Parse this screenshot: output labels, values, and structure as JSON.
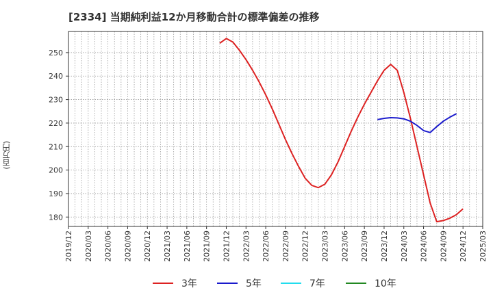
{
  "chart_data": {
    "type": "line",
    "title": "[2334]  当期純利益12か月移動合計の標準偏差の推移",
    "y_unit_label": "(百万円)",
    "xlabel": "",
    "ylabel": "(百万円)",
    "ylim": [
      176,
      259
    ],
    "yticks": [
      180,
      190,
      200,
      210,
      220,
      230,
      240,
      250
    ],
    "xlim": [
      "2019/12",
      "2025/03"
    ],
    "xticks": [
      "2019/12",
      "2020/03",
      "2020/06",
      "2020/09",
      "2020/12",
      "2021/03",
      "2021/06",
      "2021/09",
      "2021/12",
      "2022/03",
      "2022/06",
      "2022/09",
      "2022/12",
      "2023/03",
      "2023/06",
      "2023/09",
      "2023/12",
      "2024/03",
      "2024/06",
      "2024/09",
      "2024/12",
      "2025/03"
    ],
    "grid": true,
    "legend_position": "bottom",
    "series": [
      {
        "name": "3年",
        "color": "#dd2222",
        "points": [
          [
            "2021/11",
            254.0
          ],
          [
            "2021/12",
            256.0
          ],
          [
            "2022/01",
            254.5
          ],
          [
            "2022/02",
            251.0
          ],
          [
            "2022/03",
            247.0
          ],
          [
            "2022/04",
            242.5
          ],
          [
            "2022/05",
            237.5
          ],
          [
            "2022/06",
            232.0
          ],
          [
            "2022/07",
            226.0
          ],
          [
            "2022/08",
            219.5
          ],
          [
            "2022/09",
            213.0
          ],
          [
            "2022/10",
            207.0
          ],
          [
            "2022/11",
            201.5
          ],
          [
            "2022/12",
            196.5
          ],
          [
            "2023/01",
            193.5
          ],
          [
            "2023/02",
            192.5
          ],
          [
            "2023/03",
            194.0
          ],
          [
            "2023/04",
            198.0
          ],
          [
            "2023/05",
            203.5
          ],
          [
            "2023/06",
            210.0
          ],
          [
            "2023/07",
            216.5
          ],
          [
            "2023/08",
            222.5
          ],
          [
            "2023/09",
            228.0
          ],
          [
            "2023/10",
            233.0
          ],
          [
            "2023/11",
            238.0
          ],
          [
            "2023/12",
            242.5
          ],
          [
            "2024/01",
            245.0
          ],
          [
            "2024/02",
            242.5
          ],
          [
            "2024/03",
            233.0
          ],
          [
            "2024/04",
            222.0
          ],
          [
            "2024/05",
            210.0
          ],
          [
            "2024/06",
            198.0
          ],
          [
            "2024/07",
            186.0
          ],
          [
            "2024/08",
            178.0
          ],
          [
            "2024/09",
            178.5
          ],
          [
            "2024/10",
            179.5
          ],
          [
            "2024/11",
            181.0
          ],
          [
            "2024/12",
            183.5
          ]
        ]
      },
      {
        "name": "5年",
        "color": "#1a1acc",
        "points": [
          [
            "2023/11",
            221.5
          ],
          [
            "2023/12",
            222.0
          ],
          [
            "2024/01",
            222.3
          ],
          [
            "2024/02",
            222.2
          ],
          [
            "2024/03",
            221.8
          ],
          [
            "2024/04",
            220.8
          ],
          [
            "2024/05",
            219.0
          ],
          [
            "2024/06",
            216.8
          ],
          [
            "2024/07",
            216.0
          ],
          [
            "2024/08",
            218.5
          ],
          [
            "2024/09",
            220.8
          ],
          [
            "2024/10",
            222.5
          ],
          [
            "2024/11",
            224.0
          ]
        ]
      },
      {
        "name": "7年",
        "color": "#22ddee",
        "points": []
      },
      {
        "name": "10年",
        "color": "#228822",
        "points": []
      }
    ]
  }
}
